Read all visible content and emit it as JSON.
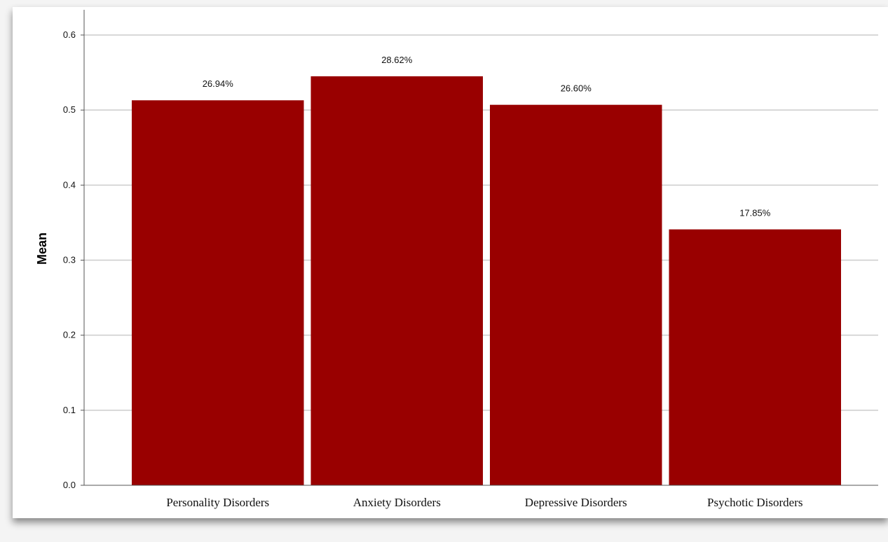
{
  "chart_data": {
    "type": "bar",
    "title": "",
    "xlabel": "",
    "ylabel": "Mean",
    "categories": [
      "Personality Disorders",
      "Anxiety Disorders",
      "Depressive Disorders",
      "Psychotic Disorders"
    ],
    "values": [
      0.513,
      0.545,
      0.507,
      0.341
    ],
    "data_labels": [
      "26.94%",
      "28.62%",
      "26.60%",
      "17.85%"
    ],
    "ylim": [
      0,
      0.6
    ],
    "yticks": [
      0.0,
      0.1,
      0.2,
      0.3,
      0.4,
      0.5,
      0.6
    ],
    "ytick_labels": [
      "0.0",
      "0.1",
      "0.2",
      "0.3",
      "0.4",
      "0.5",
      "0.6"
    ],
    "grid": true,
    "legend": "none",
    "bar_color": "#990000",
    "grid_color": "#cccccc",
    "axis_color": "#555555"
  }
}
